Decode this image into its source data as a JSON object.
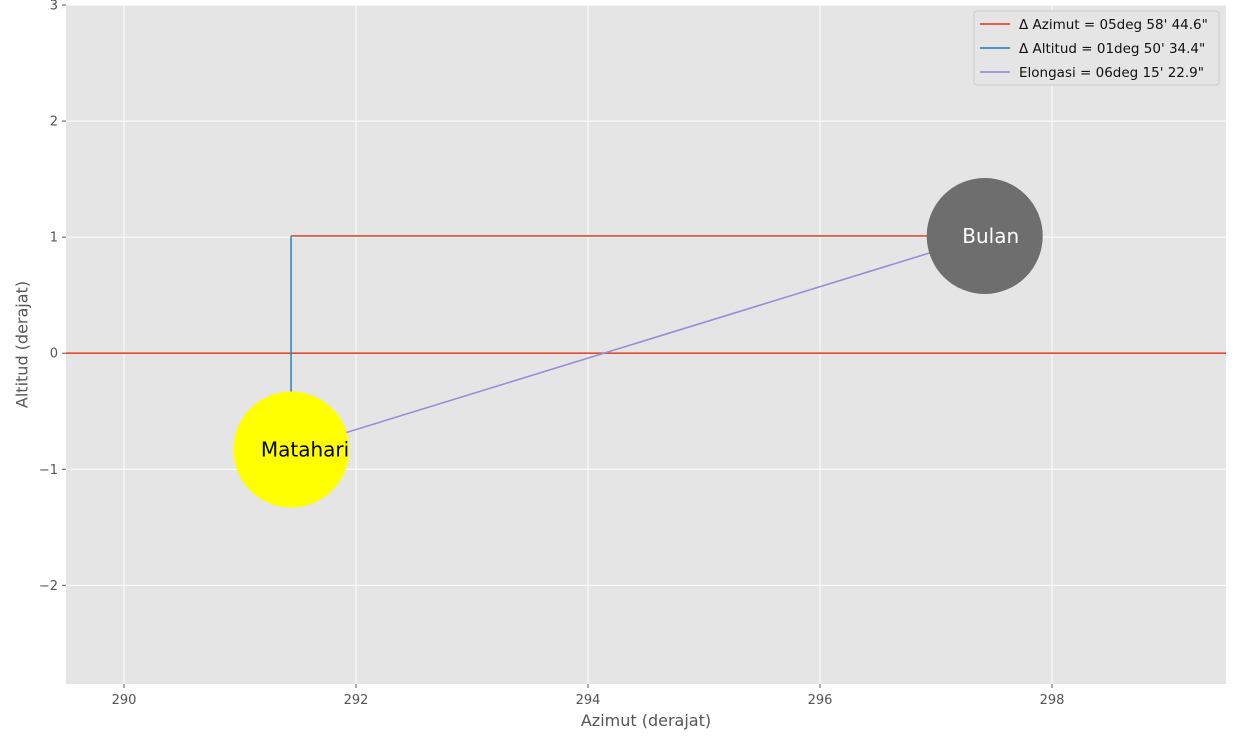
{
  "chart_data": {
    "type": "line",
    "title": "",
    "xlabel": "Azimut (derajat)",
    "ylabel": "Altitud (derajat)",
    "xlim": [
      289.5,
      299.5
    ],
    "ylim": [
      -2.85,
      3.0
    ],
    "xticks": [
      290,
      292,
      294,
      296,
      298
    ],
    "xtick_labels": [
      "290",
      "292",
      "294",
      "296",
      "298"
    ],
    "yticks": [
      -2,
      -1,
      0,
      1,
      2,
      3
    ],
    "ytick_labels": [
      "−2",
      "−1",
      "0",
      "1",
      "2",
      "3"
    ],
    "grid": true,
    "legend_position": "top-right",
    "horizon": {
      "y": 0,
      "color": "#E24A33"
    },
    "series": [
      {
        "name": "Δ Azimut = 05deg 58' 44.6\"",
        "color": "#E24A33",
        "x": [
          291.44,
          297.42
        ],
        "y": [
          1.01,
          1.01
        ]
      },
      {
        "name": "Δ Altitud = 01deg 50' 34.4\"",
        "color": "#348ABD",
        "x": [
          291.44,
          291.44
        ],
        "y": [
          -0.83,
          1.01
        ]
      },
      {
        "name": "Elongasi = 06deg 15' 22.9\"",
        "color": "#988ED5",
        "x": [
          291.44,
          297.42
        ],
        "y": [
          -0.83,
          1.01
        ]
      }
    ],
    "bodies": [
      {
        "label": "Matahari",
        "x": 291.44,
        "y": -0.83,
        "radius_deg": 0.5,
        "fill": "#FFFF00",
        "text_color": "#000000"
      },
      {
        "label": "Bulan",
        "x": 297.42,
        "y": 1.01,
        "radius_deg": 0.5,
        "fill": "#6E6E6E",
        "text_color": "#FFFFFF"
      }
    ]
  }
}
